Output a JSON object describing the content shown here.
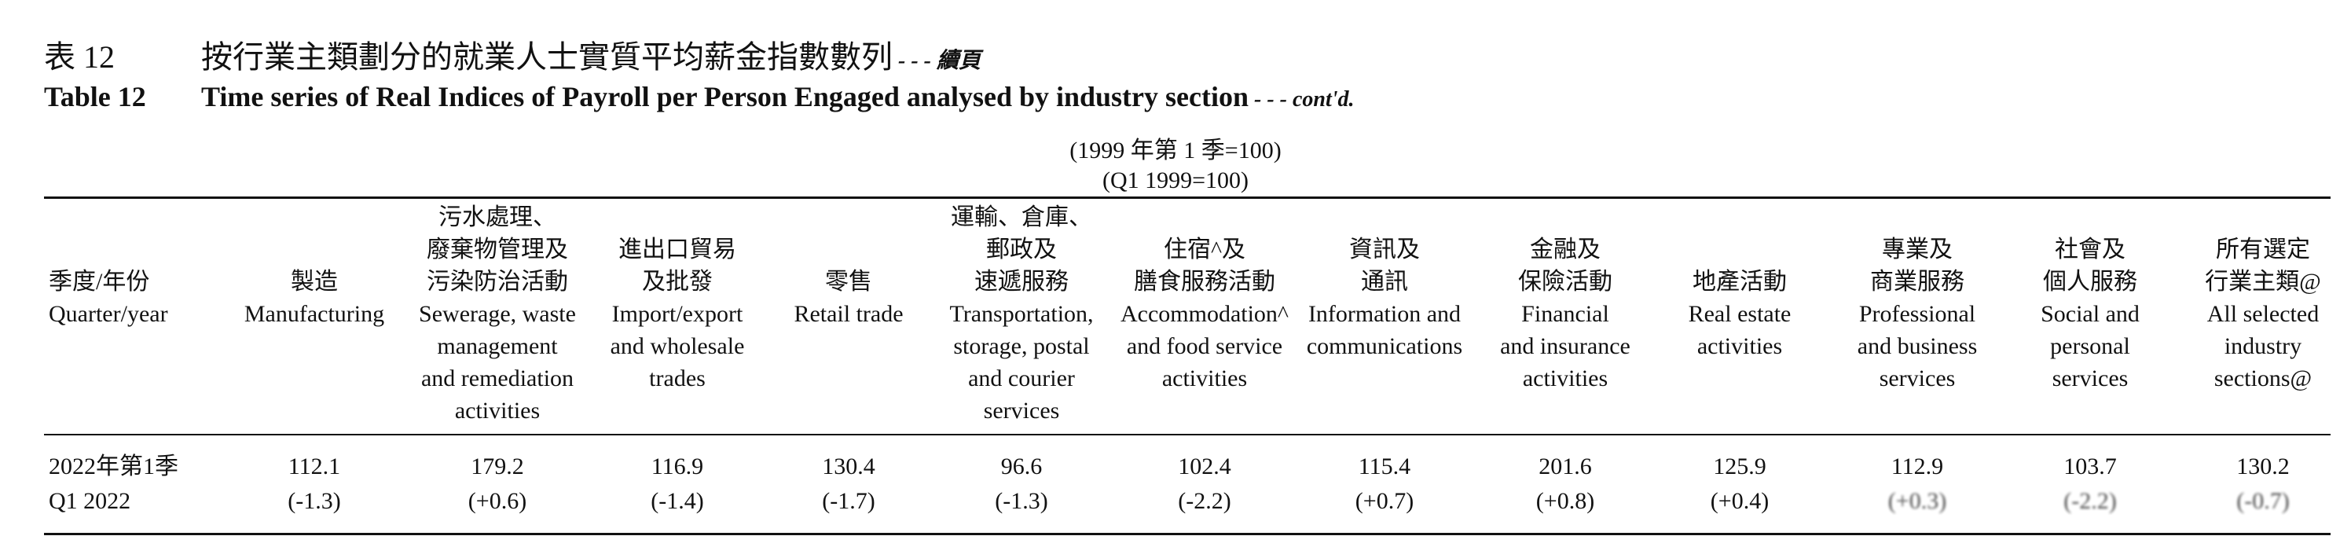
{
  "title": {
    "zh_label": "表 12",
    "zh_text": "按行業主類劃分的就業人士實質平均薪金指數數列",
    "zh_suffix": " - - - 續頁",
    "en_label": "Table 12",
    "en_text": "Time series of Real Indices of Payroll per Person Engaged analysed by industry section",
    "en_suffix": " - - - cont'd."
  },
  "base": {
    "zh": "(1999 年第 1 季=100)",
    "en": "(Q1 1999=100)"
  },
  "columns": [
    {
      "zh": [
        "季度/年份"
      ],
      "en": [
        "Quarter/year"
      ]
    },
    {
      "zh": [
        "製造"
      ],
      "en": [
        "Manufacturing"
      ]
    },
    {
      "zh": [
        "污水處理、",
        "廢棄物管理及",
        "污染防治活動"
      ],
      "en": [
        "Sewerage, waste",
        "management",
        "and remediation",
        "activities"
      ]
    },
    {
      "zh": [
        "進出口貿易",
        "及批發"
      ],
      "en": [
        "Import/export",
        "and wholesale",
        "trades"
      ]
    },
    {
      "zh": [
        "零售"
      ],
      "en": [
        "Retail trade"
      ]
    },
    {
      "zh": [
        "運輸、倉庫、",
        "郵政及",
        "速遞服務"
      ],
      "en": [
        "Transportation,",
        "storage, postal",
        "and courier",
        "services"
      ]
    },
    {
      "zh": [
        "住宿^及",
        "膳食服務活動"
      ],
      "en": [
        "Accommodation^",
        "and food service",
        "activities"
      ]
    },
    {
      "zh": [
        "資訊及",
        "通訊"
      ],
      "en": [
        "Information and",
        "communications"
      ]
    },
    {
      "zh": [
        "金融及",
        "保險活動"
      ],
      "en": [
        "Financial",
        "and insurance",
        "activities"
      ]
    },
    {
      "zh": [
        "地產活動"
      ],
      "en": [
        "Real estate",
        "activities"
      ]
    },
    {
      "zh": [
        "專業及",
        "商業服務"
      ],
      "en": [
        "Professional",
        "and business",
        "services"
      ]
    },
    {
      "zh": [
        "社會及",
        "個人服務"
      ],
      "en": [
        "Social and",
        "personal",
        "services"
      ]
    },
    {
      "zh": [
        "所有選定",
        "行業主類@"
      ],
      "en": [
        "All selected",
        "industry",
        "sections@"
      ]
    }
  ],
  "rows": [
    {
      "period_zh": "2022年第1季",
      "period_en": "Q1 2022",
      "values": [
        "112.1",
        "179.2",
        "116.9",
        "130.4",
        "96.6",
        "102.4",
        "115.4",
        "201.6",
        "125.9",
        "112.9",
        "103.7",
        "130.2"
      ],
      "changes": [
        "(-1.3)",
        "(+0.6)",
        "(-1.4)",
        "(-1.7)",
        "(-1.3)",
        "(-2.2)",
        "(+0.7)",
        "(+0.8)",
        "(+0.4)",
        "(+0.3)",
        "(-2.2)",
        "(-0.7)"
      ]
    }
  ]
}
